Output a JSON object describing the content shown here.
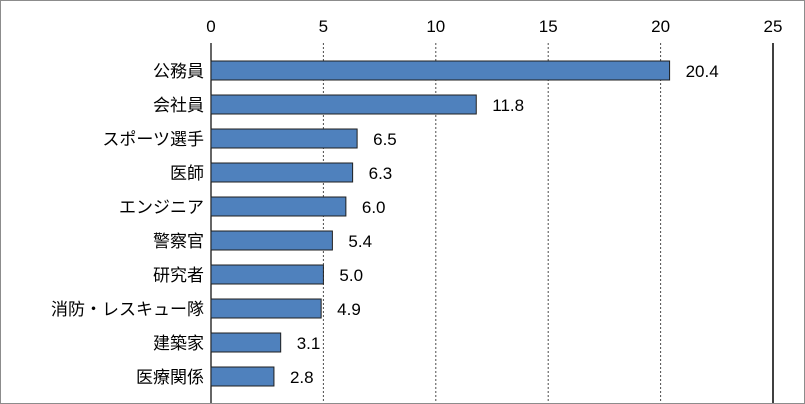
{
  "chart_data": {
    "type": "bar",
    "orientation": "horizontal",
    "categories": [
      "公務員",
      "会社員",
      "スポーツ選手",
      "医師",
      "エンジニア",
      "警察官",
      "研究者",
      "消防・レスキュー隊",
      "建築家",
      "医療関係"
    ],
    "values": [
      20.4,
      11.8,
      6.5,
      6.3,
      6.0,
      5.4,
      5.0,
      4.9,
      3.1,
      2.8
    ],
    "value_labels": [
      "20.4",
      "11.8",
      "6.5",
      "6.3",
      "6.0",
      "5.4",
      "5.0",
      "4.9",
      "3.1",
      "2.8"
    ],
    "title": "",
    "xlabel": "",
    "ylabel": "",
    "xlim": [
      0,
      25
    ],
    "x_ticks": [
      0,
      5,
      10,
      15,
      20,
      25
    ],
    "x_tick_labels": [
      "0",
      "5",
      "10",
      "15",
      "20",
      "25"
    ],
    "x_axis_position": "top",
    "grid": "vertical dotted",
    "legend": "none",
    "colors": {
      "bar_fill": "#4f81bd",
      "bar_stroke": "#1f1f1f",
      "grid": "#4d4d4d",
      "axis": "#000000"
    }
  }
}
